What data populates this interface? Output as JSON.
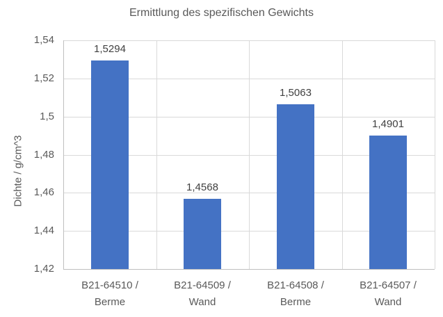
{
  "chart_data": {
    "type": "bar",
    "title": "Ermittlung des spezifischen Gewichts",
    "xlabel": "",
    "ylabel": "Dichte / g/cm^3",
    "categories": [
      "B21-64510 / Berme",
      "B21-64509 / Wand",
      "B21-64508 / Berme",
      "B21-64507 / Wand"
    ],
    "category_label_lines": [
      [
        "B21-64510 /",
        "Berme"
      ],
      [
        "B21-64509 /",
        "Wand"
      ],
      [
        "B21-64508 /",
        "Berme"
      ],
      [
        "B21-64507 /",
        "Wand"
      ]
    ],
    "values": [
      1.5294,
      1.4568,
      1.5063,
      1.4901
    ],
    "value_labels": [
      "1,5294",
      "1,4568",
      "1,5063",
      "1,4901"
    ],
    "ylim": [
      1.42,
      1.54
    ],
    "ytick_values": [
      1.42,
      1.44,
      1.46,
      1.48,
      1.5,
      1.52,
      1.54
    ],
    "ytick_labels": [
      "1,42",
      "1,44",
      "1,46",
      "1,48",
      "1,5",
      "1,52",
      "1,54"
    ],
    "grid": true,
    "legend": false,
    "colors": {
      "bar": "#4472C4",
      "gridline": "#D9D9D9",
      "axis_line": "#BFBFBF",
      "text": "#595959",
      "data_label": "#404040",
      "background": "#FFFFFF"
    }
  }
}
